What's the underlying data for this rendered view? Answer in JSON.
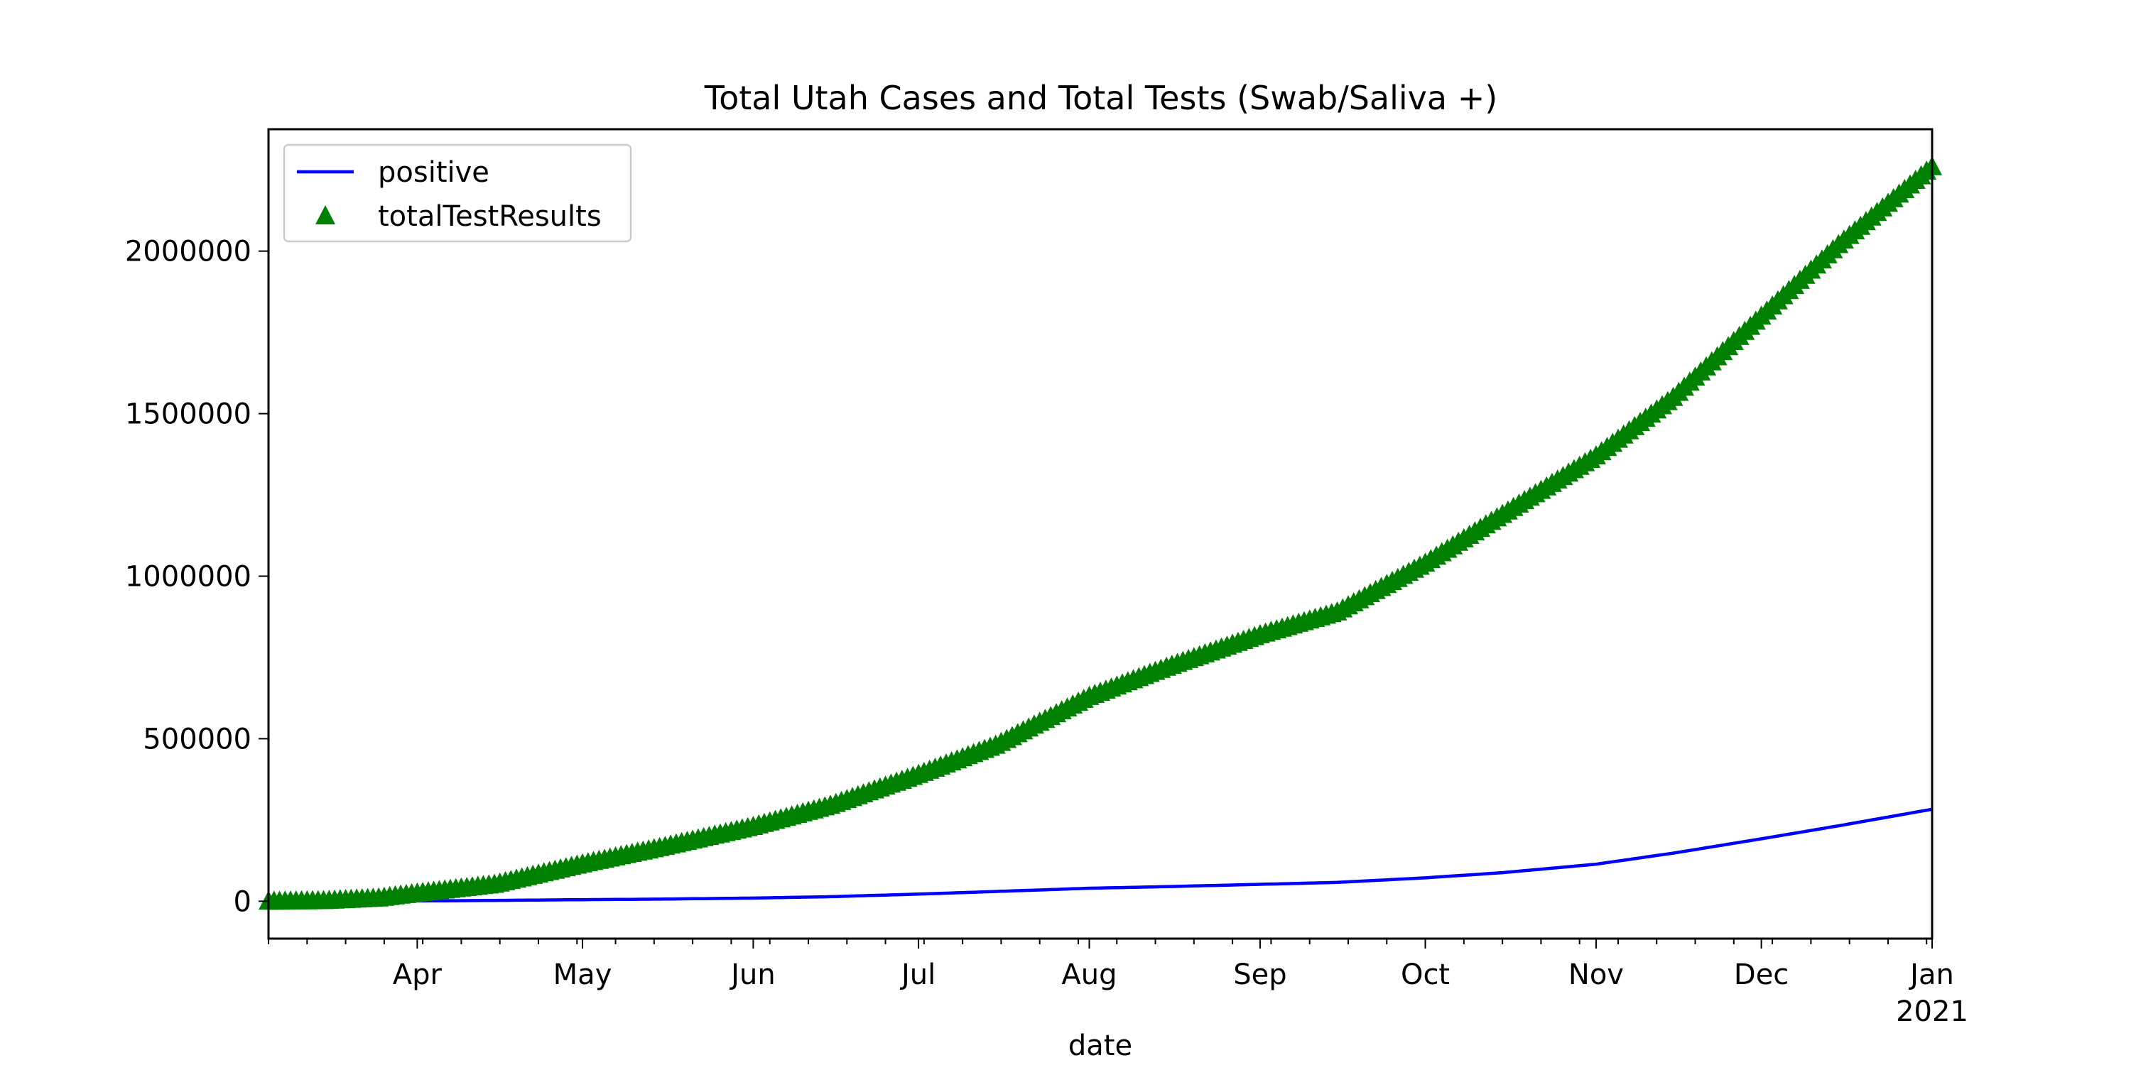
{
  "chart_data": {
    "type": "line",
    "title": "Total Utah Cases and Total Tests (Swab/Saliva +)",
    "xlabel": "date",
    "ylabel": "",
    "x_range": [
      "2020-03-05",
      "2021-01-01"
    ],
    "ylim": [
      -115000,
      2375000
    ],
    "x_ticks": [
      {
        "date": "2020-04-01",
        "label": "Apr"
      },
      {
        "date": "2020-05-01",
        "label": "May"
      },
      {
        "date": "2020-06-01",
        "label": "Jun"
      },
      {
        "date": "2020-07-01",
        "label": "Jul"
      },
      {
        "date": "2020-08-01",
        "label": "Aug"
      },
      {
        "date": "2020-09-01",
        "label": "Sep"
      },
      {
        "date": "2020-10-01",
        "label": "Oct"
      },
      {
        "date": "2020-11-01",
        "label": "Nov"
      },
      {
        "date": "2020-12-01",
        "label": "Dec"
      },
      {
        "date": "2021-01-01",
        "label": "Jan",
        "sublabel": "2021"
      }
    ],
    "y_ticks": [
      0,
      500000,
      1000000,
      1500000,
      2000000
    ],
    "grid": false,
    "legend_position": "upper-left",
    "series": [
      {
        "name": "positive",
        "style": "line",
        "color": "#0000ff",
        "points": [
          [
            "2020-03-05",
            0
          ],
          [
            "2020-03-15",
            50
          ],
          [
            "2020-04-01",
            900
          ],
          [
            "2020-04-15",
            2500
          ],
          [
            "2020-05-01",
            4800
          ],
          [
            "2020-05-15",
            6500
          ],
          [
            "2020-06-01",
            9800
          ],
          [
            "2020-06-15",
            14000
          ],
          [
            "2020-07-01",
            22000
          ],
          [
            "2020-07-15",
            30000
          ],
          [
            "2020-08-01",
            40000
          ],
          [
            "2020-08-15",
            45000
          ],
          [
            "2020-09-01",
            52000
          ],
          [
            "2020-09-15",
            58000
          ],
          [
            "2020-10-01",
            72000
          ],
          [
            "2020-10-15",
            88000
          ],
          [
            "2020-11-01",
            114000
          ],
          [
            "2020-11-15",
            148000
          ],
          [
            "2020-12-01",
            192000
          ],
          [
            "2020-12-15",
            232000
          ],
          [
            "2021-01-01",
            283000
          ]
        ]
      },
      {
        "name": "totalTestResults",
        "style": "marker",
        "marker": "triangle-up",
        "color": "#008000",
        "points": [
          [
            "2020-03-05",
            0
          ],
          [
            "2020-03-15",
            2000
          ],
          [
            "2020-03-25",
            10000
          ],
          [
            "2020-04-01",
            25000
          ],
          [
            "2020-04-15",
            52000
          ],
          [
            "2020-05-01",
            115000
          ],
          [
            "2020-05-15",
            165000
          ],
          [
            "2020-06-01",
            230000
          ],
          [
            "2020-06-15",
            295000
          ],
          [
            "2020-07-01",
            390000
          ],
          [
            "2020-07-15",
            480000
          ],
          [
            "2020-08-01",
            630000
          ],
          [
            "2020-08-15",
            720000
          ],
          [
            "2020-09-01",
            820000
          ],
          [
            "2020-09-15",
            890000
          ],
          [
            "2020-10-01",
            1040000
          ],
          [
            "2020-10-15",
            1190000
          ],
          [
            "2020-11-01",
            1370000
          ],
          [
            "2020-11-15",
            1550000
          ],
          [
            "2020-12-01",
            1800000
          ],
          [
            "2020-12-15",
            2020000
          ],
          [
            "2021-01-01",
            2260000
          ]
        ]
      }
    ]
  }
}
